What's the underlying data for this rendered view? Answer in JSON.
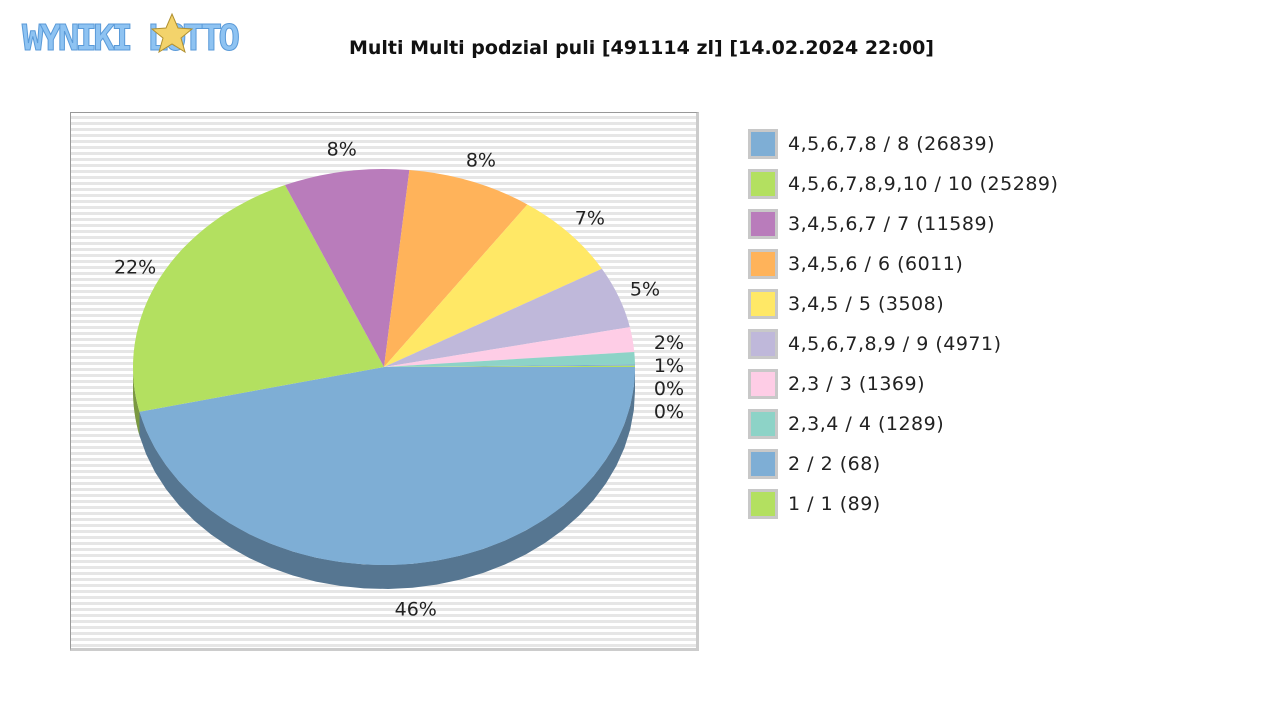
{
  "logo": {
    "text": "WYNIKI LOTTO"
  },
  "chart_data": {
    "type": "pie",
    "title": "Multi Multi podzial puli [491114 zl] [14.02.2024 22:00]",
    "legend_position": "right",
    "slices": [
      {
        "label": "4,5,6,7,8 / 8 (26839)",
        "percent": 46,
        "display": "46%",
        "color": "#7eaed5"
      },
      {
        "label": "4,5,6,7,8,9,10 / 10 (25289)",
        "percent": 22,
        "display": "22%",
        "color": "#b3e060"
      },
      {
        "label": "3,4,5,6,7 / 7 (11589)",
        "percent": 8,
        "display": "8%",
        "color": "#b97cbb"
      },
      {
        "label": "3,4,5,6 / 6 (6011)",
        "percent": 8,
        "display": "8%",
        "color": "#ffb35a"
      },
      {
        "label": "3,4,5 / 5 (3508)",
        "percent": 7,
        "display": "7%",
        "color": "#ffe866"
      },
      {
        "label": "4,5,6,7,8,9 / 9 (4971)",
        "percent": 5,
        "display": "5%",
        "color": "#bfb8da"
      },
      {
        "label": "2,3 / 3 (1369)",
        "percent": 2,
        "display": "2%",
        "color": "#fecde6"
      },
      {
        "label": "2,3,4 / 4 (1289)",
        "percent": 1,
        "display": "1%",
        "color": "#8dd3c7"
      },
      {
        "label": "2 / 2 (68)",
        "percent": 0.1,
        "display": "0%",
        "color": "#7eaed5"
      },
      {
        "label": "1 / 1 (89)",
        "percent": 0.1,
        "display": "0%",
        "color": "#b3e060"
      }
    ]
  }
}
